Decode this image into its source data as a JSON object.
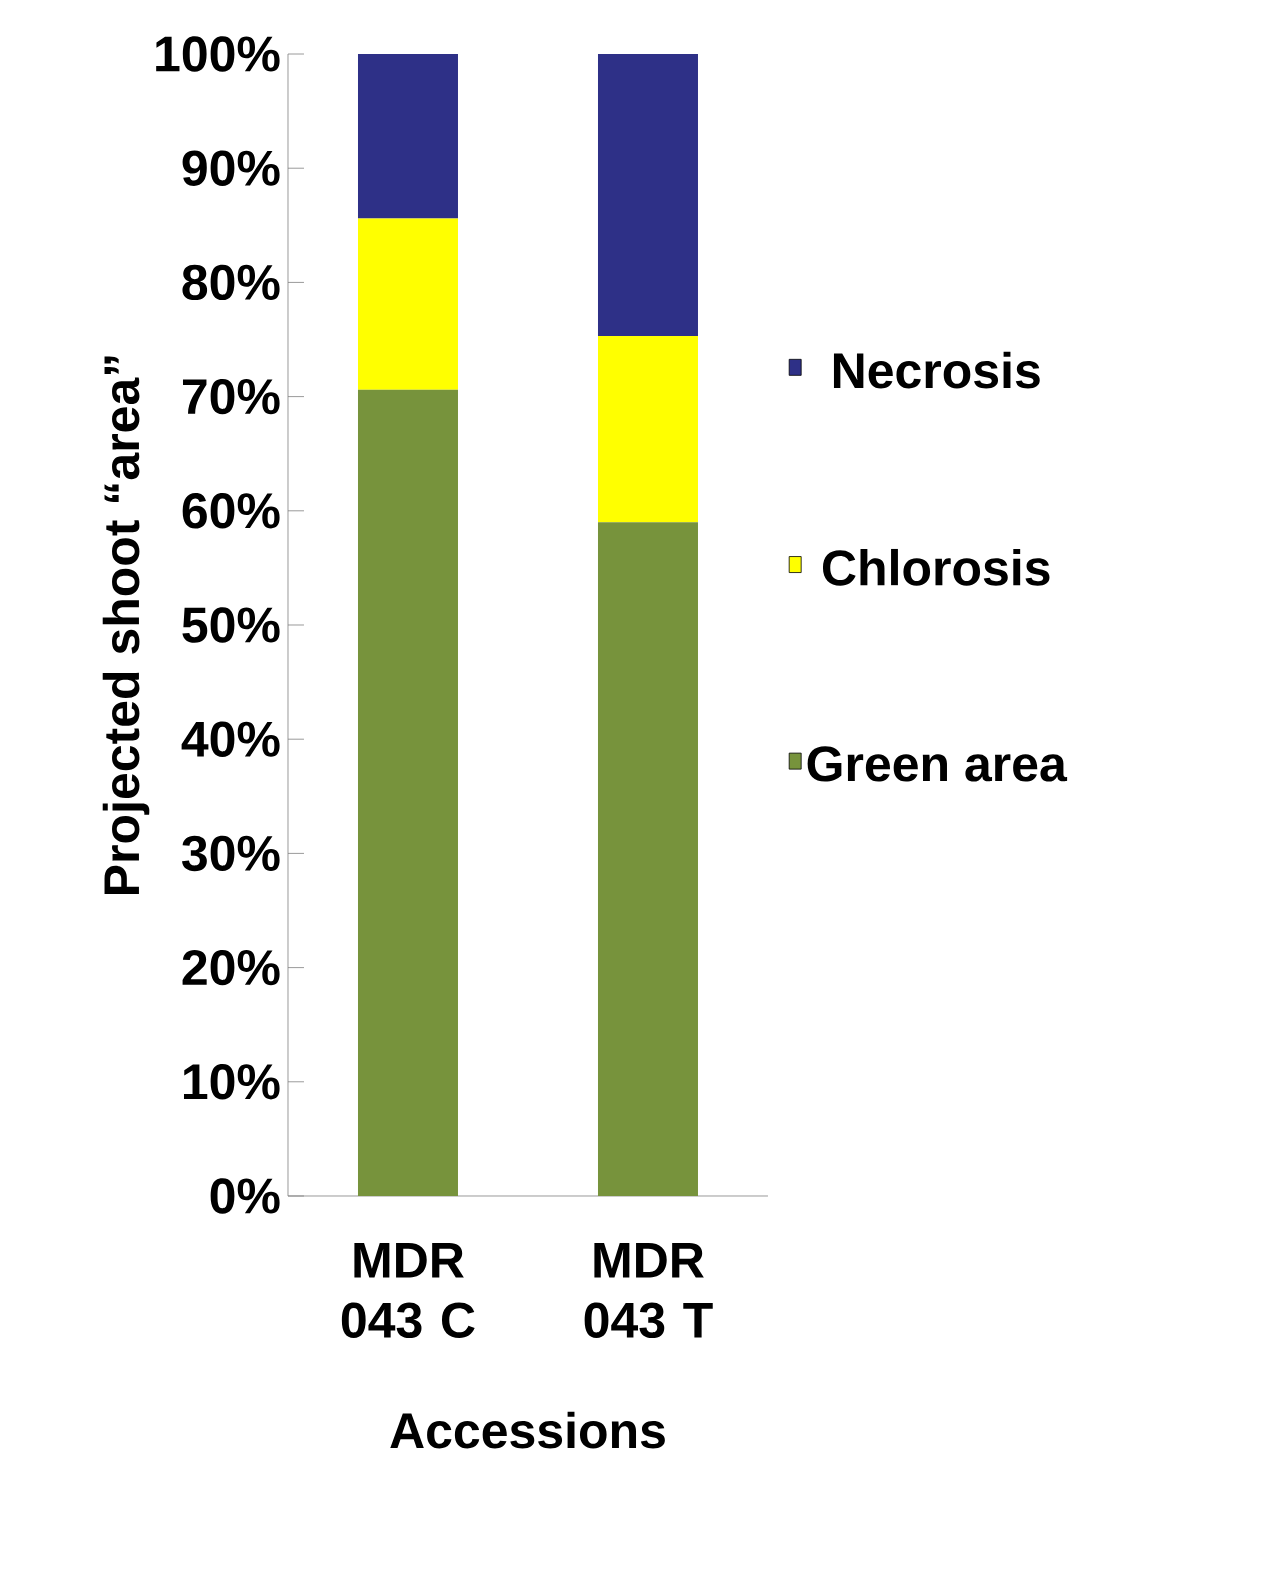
{
  "chart_data": {
    "type": "bar",
    "stacked": true,
    "xlabel": "Accessions",
    "ylabel": "Projected shoot “area”",
    "categories": [
      "MDR 043 C",
      "MDR 043 T"
    ],
    "series": [
      {
        "name": "Green area",
        "color": "#77933c",
        "values": [
          70.6,
          59.0
        ]
      },
      {
        "name": "Chlorosis",
        "color": "#ffff00",
        "values": [
          15.0,
          16.3
        ]
      },
      {
        "name": "Necrosis",
        "color": "#2e3087",
        "values": [
          14.4,
          24.7
        ]
      }
    ],
    "ylim": [
      0,
      100
    ],
    "yticks": [
      {
        "value": 0,
        "label": "0%"
      },
      {
        "value": 10,
        "label": "10%"
      },
      {
        "value": 20,
        "label": "20%"
      },
      {
        "value": 30,
        "label": "30%"
      },
      {
        "value": 40,
        "label": "40%"
      },
      {
        "value": 50,
        "label": "50%"
      },
      {
        "value": 60,
        "label": "60%"
      },
      {
        "value": 70,
        "label": "70%"
      },
      {
        "value": 80,
        "label": "80%"
      },
      {
        "value": 90,
        "label": "90%"
      },
      {
        "value": 100,
        "label": "100%"
      }
    ],
    "legend": "right",
    "grid": false
  }
}
